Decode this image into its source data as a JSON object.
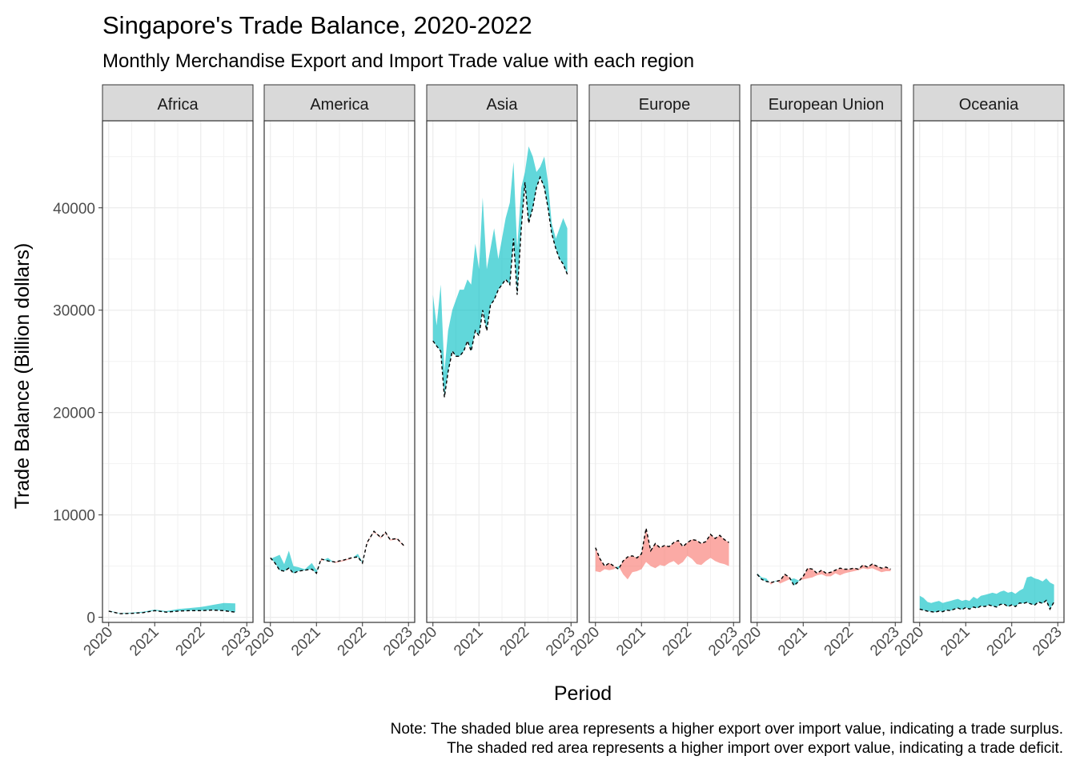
{
  "chart_data": {
    "type": "area",
    "title": "Singapore's Trade Balance, 2020-2022",
    "subtitle": "Monthly Merchandise Export and Import Trade value with each region",
    "xlabel": "Period",
    "ylabel": "Trade Balance (Billion dollars)",
    "caption_lines": [
      "Note: The shaded blue area represents a higher export over import value, indicating a trade surplus.",
      "The shaded red area represents a higher import over export value, indicating a trade deficit."
    ],
    "xlim": [
      2020,
      2023
    ],
    "ylim": [
      -500,
      48500
    ],
    "x_ticks": [
      "2020",
      "2021",
      "2022",
      "2023"
    ],
    "y_ticks": [
      0,
      10000,
      20000,
      30000,
      40000
    ],
    "grid": true,
    "colors": {
      "surplus": "#00BFC4",
      "deficit": "#F8766D",
      "import_line": "#000000"
    },
    "panels": [
      {
        "region": "Africa",
        "x": [
          2020.0,
          2020.25,
          2020.5,
          2020.75,
          2021.0,
          2021.25,
          2021.5,
          2021.75,
          2022.0,
          2022.25,
          2022.5,
          2022.75
        ],
        "export": [
          650,
          400,
          450,
          550,
          750,
          600,
          800,
          900,
          1000,
          1200,
          1400,
          1350
        ],
        "import": [
          600,
          350,
          380,
          450,
          650,
          500,
          600,
          650,
          650,
          700,
          650,
          500
        ]
      },
      {
        "region": "America",
        "x": [
          2020.0,
          2020.1,
          2020.2,
          2020.3,
          2020.4,
          2020.5,
          2020.6,
          2020.75,
          2020.9,
          2021.0,
          2021.1,
          2021.25,
          2021.4,
          2021.6,
          2021.75,
          2021.9,
          2022.0,
          2022.1,
          2022.25,
          2022.4,
          2022.5,
          2022.6,
          2022.75,
          2022.9
        ],
        "export": [
          5700,
          5900,
          6100,
          5200,
          6500,
          5000,
          4900,
          4700,
          5300,
          4600,
          5500,
          5800,
          5300,
          5500,
          5700,
          6200,
          5400,
          7200,
          8300,
          7700,
          8200,
          7500,
          7600,
          6900
        ],
        "import": [
          5800,
          5300,
          4600,
          4500,
          4800,
          4300,
          4500,
          4600,
          4700,
          4300,
          5700,
          5500,
          5400,
          5600,
          5800,
          5900,
          5300,
          7300,
          8400,
          7800,
          8300,
          7600,
          7700,
          7000
        ]
      },
      {
        "region": "Asia",
        "x": [
          2020.0,
          2020.08,
          2020.17,
          2020.25,
          2020.33,
          2020.42,
          2020.5,
          2020.58,
          2020.67,
          2020.75,
          2020.83,
          2020.92,
          2021.0,
          2021.08,
          2021.17,
          2021.25,
          2021.33,
          2021.42,
          2021.5,
          2021.58,
          2021.67,
          2021.75,
          2021.83,
          2021.92,
          2022.0,
          2022.08,
          2022.17,
          2022.25,
          2022.33,
          2022.42,
          2022.5,
          2022.58,
          2022.67,
          2022.75,
          2022.83,
          2022.92
        ],
        "export": [
          31500,
          28500,
          32500,
          24000,
          28000,
          30000,
          31000,
          32000,
          32000,
          33000,
          32500,
          36500,
          34000,
          41000,
          34000,
          36000,
          38000,
          35000,
          37000,
          39000,
          40500,
          44500,
          36000,
          42000,
          43500,
          46000,
          45000,
          43500,
          44000,
          45000,
          42500,
          38500,
          37000,
          38000,
          39000,
          38000
        ],
        "import": [
          27000,
          26500,
          26000,
          21500,
          24000,
          26000,
          25500,
          25500,
          26000,
          27000,
          26000,
          28000,
          27500,
          30000,
          28000,
          30500,
          31000,
          32000,
          32500,
          33000,
          32500,
          37000,
          31500,
          38000,
          42500,
          38500,
          40000,
          42000,
          43000,
          42000,
          40000,
          37500,
          36000,
          35000,
          34500,
          33500
        ]
      },
      {
        "region": "Europe",
        "x": [
          2020.0,
          2020.1,
          2020.2,
          2020.3,
          2020.4,
          2020.5,
          2020.6,
          2020.7,
          2020.8,
          2020.9,
          2021.0,
          2021.1,
          2021.2,
          2021.3,
          2021.4,
          2021.5,
          2021.6,
          2021.7,
          2021.8,
          2021.9,
          2022.0,
          2022.1,
          2022.2,
          2022.3,
          2022.4,
          2022.5,
          2022.6,
          2022.7,
          2022.8,
          2022.9
        ],
        "export": [
          4500,
          4400,
          4700,
          4600,
          4700,
          5000,
          4200,
          3700,
          4400,
          4500,
          4700,
          5400,
          5000,
          4800,
          5100,
          5000,
          5300,
          5500,
          5100,
          5400,
          6000,
          5700,
          5200,
          5100,
          5500,
          5800,
          5500,
          5300,
          5200,
          5000
        ],
        "import": [
          6800,
          5700,
          5000,
          5300,
          5000,
          4700,
          5500,
          5900,
          6000,
          5800,
          6200,
          8700,
          6500,
          7200,
          6800,
          7000,
          6900,
          7300,
          7500,
          6900,
          7300,
          7600,
          7500,
          7200,
          7400,
          8100,
          7700,
          8000,
          7600,
          7300
        ]
      },
      {
        "region": "European Union",
        "x": [
          2020.0,
          2020.1,
          2020.2,
          2020.3,
          2020.4,
          2020.5,
          2020.6,
          2020.7,
          2020.8,
          2020.9,
          2021.0,
          2021.1,
          2021.2,
          2021.3,
          2021.4,
          2021.5,
          2021.6,
          2021.7,
          2021.8,
          2021.9,
          2022.0,
          2022.1,
          2022.2,
          2022.3,
          2022.4,
          2022.5,
          2022.6,
          2022.7,
          2022.8,
          2022.9
        ],
        "export": [
          4300,
          3900,
          3800,
          3200,
          3600,
          3300,
          3500,
          3700,
          3800,
          3600,
          3700,
          3800,
          3900,
          4100,
          4200,
          4000,
          4000,
          4300,
          4100,
          4300,
          4400,
          4500,
          4600,
          4800,
          4700,
          4800,
          4600,
          4400,
          4500,
          4500
        ],
        "import": [
          4200,
          3700,
          3500,
          3400,
          3500,
          3600,
          4200,
          3900,
          3100,
          3500,
          4000,
          4800,
          4700,
          4300,
          4600,
          4300,
          4400,
          4600,
          4800,
          4700,
          4700,
          4800,
          4700,
          5100,
          4900,
          5200,
          5000,
          4800,
          4900,
          4700
        ]
      },
      {
        "region": "Oceania",
        "x": [
          2020.0,
          2020.08,
          2020.17,
          2020.25,
          2020.33,
          2020.42,
          2020.5,
          2020.58,
          2020.67,
          2020.75,
          2020.83,
          2020.92,
          2021.0,
          2021.08,
          2021.17,
          2021.25,
          2021.33,
          2021.42,
          2021.5,
          2021.58,
          2021.67,
          2021.75,
          2021.83,
          2021.92,
          2022.0,
          2022.08,
          2022.17,
          2022.25,
          2022.33,
          2022.42,
          2022.5,
          2022.58,
          2022.67,
          2022.75,
          2022.83,
          2022.92
        ],
        "export": [
          2100,
          1900,
          1500,
          1400,
          1500,
          1600,
          1400,
          1500,
          1600,
          1700,
          1800,
          1600,
          1700,
          1600,
          2000,
          1800,
          2100,
          2200,
          2300,
          2400,
          2300,
          2500,
          2600,
          2400,
          2500,
          2300,
          2600,
          2800,
          3900,
          4000,
          3800,
          3700,
          3500,
          3800,
          3400,
          3200
        ],
        "import": [
          800,
          700,
          600,
          550,
          500,
          600,
          550,
          700,
          650,
          800,
          900,
          750,
          950,
          800,
          1000,
          900,
          1100,
          1050,
          1200,
          1100,
          1000,
          1250,
          1300,
          1050,
          1200,
          1050,
          1400,
          1350,
          1450,
          1300,
          1200,
          1500,
          1350,
          1650,
          800,
          1500
        ]
      }
    ]
  }
}
